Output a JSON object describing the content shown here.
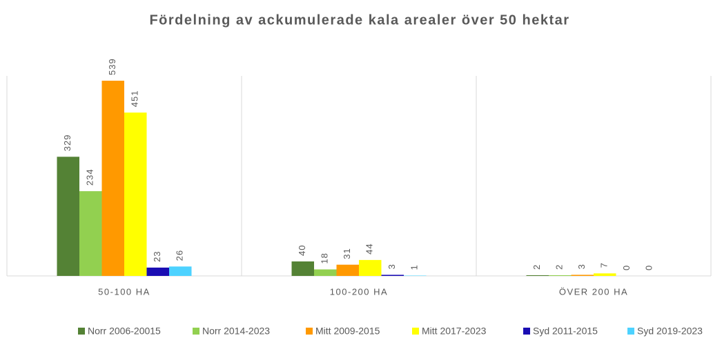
{
  "chart_data": {
    "type": "bar",
    "title": "Fördelning av ackumulerade kala arealer över 50 hektar",
    "categories": [
      "50-100 HA",
      "100-200 HA",
      "ÖVER 200 HA"
    ],
    "series": [
      {
        "name": "Norr 2006-20015",
        "color": "#548235",
        "values": [
          329,
          40,
          2
        ]
      },
      {
        "name": "Norr 2014-2023",
        "color": "#92d050",
        "values": [
          234,
          18,
          2
        ]
      },
      {
        "name": "Mitt 2009-2015",
        "color": "#ff9900",
        "values": [
          539,
          31,
          3
        ]
      },
      {
        "name": "Mitt 2017-2023",
        "color": "#ffff00",
        "values": [
          451,
          44,
          7
        ]
      },
      {
        "name": "Syd 2011-2015",
        "color": "#1a0db3",
        "values": [
          23,
          3,
          0
        ]
      },
      {
        "name": "Syd 2019-2023",
        "color": "#4dd2ff",
        "values": [
          26,
          1,
          0
        ]
      }
    ]
  }
}
